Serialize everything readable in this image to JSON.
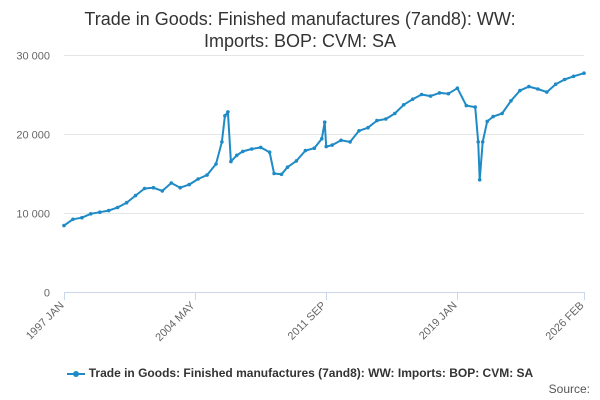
{
  "chart_data": {
    "type": "line",
    "title_line1": "Trade in Goods: Finished manufactures (7and8): WW:",
    "title_line2": "Imports: BOP: CVM: SA",
    "xlabel": "",
    "ylabel": "",
    "ylim": [
      0,
      30000
    ],
    "yticks": [
      0,
      10000,
      20000,
      30000
    ],
    "ytick_labels": [
      "0",
      "10 000",
      "20 000",
      "30 000"
    ],
    "xtick_labels": [
      "1997 JAN",
      "2004 MAY",
      "2011 SEP",
      "2019 JAN",
      "2026 FEB"
    ],
    "xtick_dates": [
      "1997-01",
      "2004-05",
      "2011-09",
      "2019-01",
      "2026-02"
    ],
    "x_range": [
      "1997-01",
      "2026-02"
    ],
    "grid": true,
    "legend_position": "bottom",
    "color": "#1f8bc6",
    "series": [
      {
        "name": "Trade in Goods: Finished manufactures (7and8): WW: Imports: BOP: CVM: SA",
        "points": [
          [
            "1997-01",
            8400
          ],
          [
            "1997-07",
            9200
          ],
          [
            "1998-01",
            9400
          ],
          [
            "1998-07",
            9900
          ],
          [
            "1999-01",
            10100
          ],
          [
            "1999-07",
            10300
          ],
          [
            "2000-01",
            10700
          ],
          [
            "2000-07",
            11300
          ],
          [
            "2001-01",
            12200
          ],
          [
            "2001-07",
            13100
          ],
          [
            "2002-01",
            13200
          ],
          [
            "2002-07",
            12800
          ],
          [
            "2003-01",
            13800
          ],
          [
            "2003-07",
            13200
          ],
          [
            "2004-01",
            13600
          ],
          [
            "2004-07",
            14300
          ],
          [
            "2005-01",
            14800
          ],
          [
            "2005-07",
            16200
          ],
          [
            "2005-11",
            19000
          ],
          [
            "2006-01",
            22300
          ],
          [
            "2006-03",
            22800
          ],
          [
            "2006-05",
            16500
          ],
          [
            "2006-09",
            17300
          ],
          [
            "2007-01",
            17800
          ],
          [
            "2007-07",
            18100
          ],
          [
            "2008-01",
            18300
          ],
          [
            "2008-07",
            17700
          ],
          [
            "2008-10",
            15000
          ],
          [
            "2009-03",
            14900
          ],
          [
            "2009-07",
            15800
          ],
          [
            "2010-01",
            16600
          ],
          [
            "2010-07",
            17900
          ],
          [
            "2011-01",
            18200
          ],
          [
            "2011-06",
            19400
          ],
          [
            "2011-08",
            21500
          ],
          [
            "2011-09",
            18400
          ],
          [
            "2012-01",
            18600
          ],
          [
            "2012-07",
            19200
          ],
          [
            "2013-01",
            19000
          ],
          [
            "2013-07",
            20400
          ],
          [
            "2014-01",
            20800
          ],
          [
            "2014-07",
            21700
          ],
          [
            "2015-01",
            21900
          ],
          [
            "2015-07",
            22600
          ],
          [
            "2016-01",
            23700
          ],
          [
            "2016-07",
            24400
          ],
          [
            "2017-01",
            25000
          ],
          [
            "2017-07",
            24800
          ],
          [
            "2018-01",
            25200
          ],
          [
            "2018-07",
            25100
          ],
          [
            "2019-01",
            25800
          ],
          [
            "2019-07",
            23600
          ],
          [
            "2020-01",
            23400
          ],
          [
            "2020-03",
            19000
          ],
          [
            "2020-04",
            14200
          ],
          [
            "2020-06",
            19000
          ],
          [
            "2020-09",
            21600
          ],
          [
            "2021-01",
            22200
          ],
          [
            "2021-07",
            22600
          ],
          [
            "2022-01",
            24200
          ],
          [
            "2022-07",
            25500
          ],
          [
            "2023-01",
            26000
          ],
          [
            "2023-07",
            25700
          ],
          [
            "2024-01",
            25300
          ],
          [
            "2024-07",
            26300
          ],
          [
            "2025-01",
            26900
          ],
          [
            "2025-07",
            27300
          ],
          [
            "2026-02",
            27700
          ]
        ]
      }
    ]
  },
  "source_label": "Source:"
}
